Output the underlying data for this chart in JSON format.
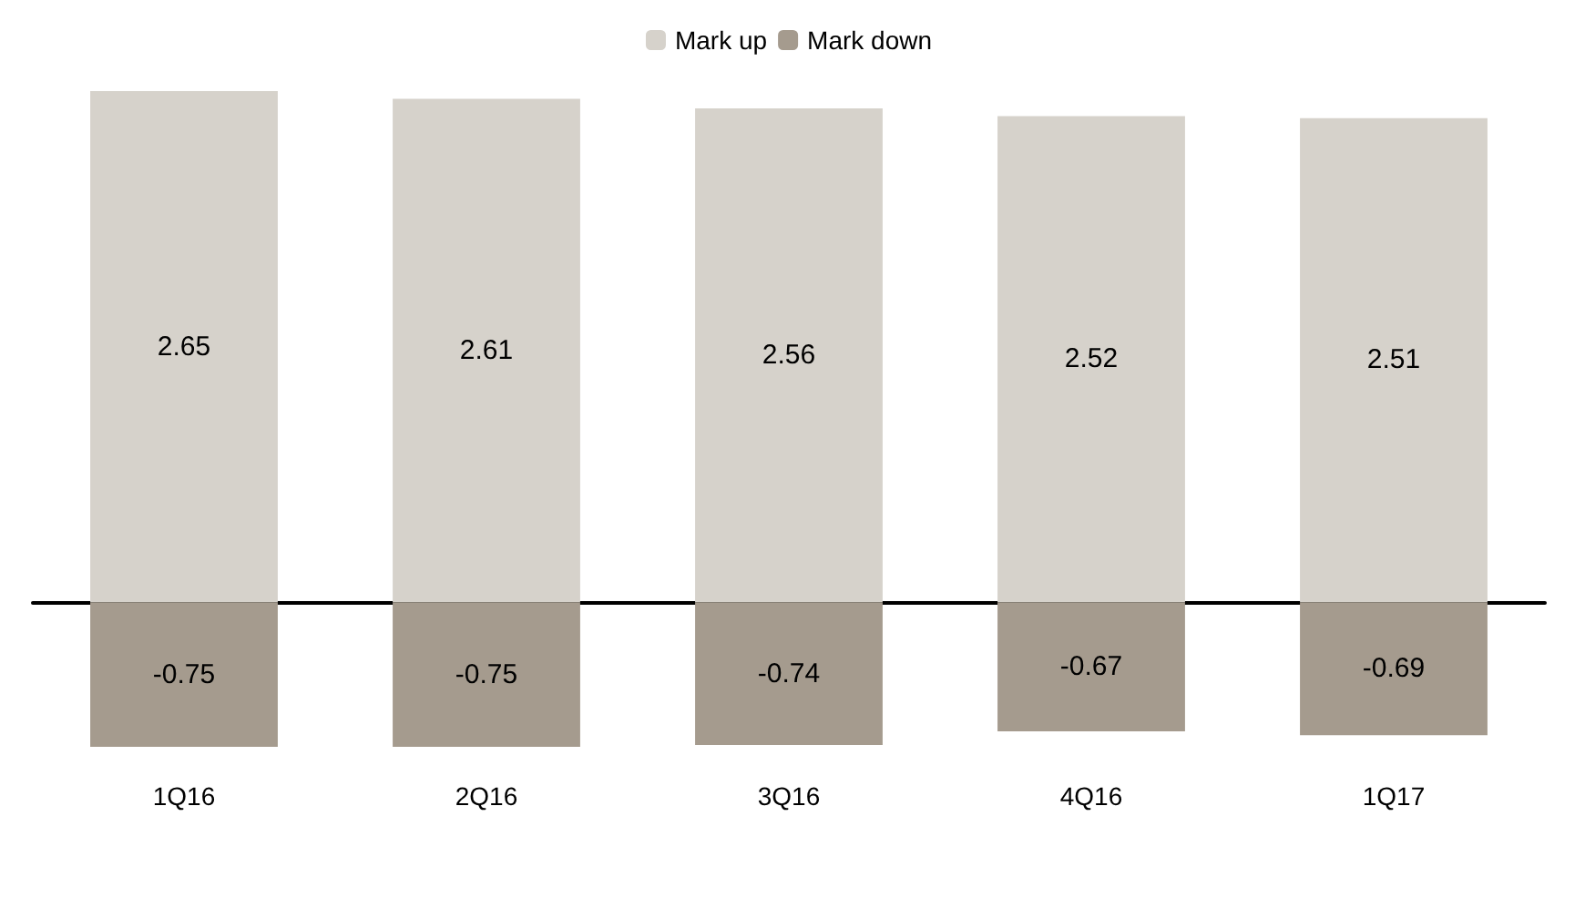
{
  "chart_data": {
    "type": "bar",
    "stacked": true,
    "categories": [
      "1Q16",
      "2Q16",
      "3Q16",
      "4Q16",
      "1Q17"
    ],
    "series": [
      {
        "name": "Mark up",
        "color": "#d6d2cb",
        "values": [
          2.65,
          2.61,
          2.56,
          2.52,
          2.51
        ]
      },
      {
        "name": "Mark down",
        "color": "#a59b8e",
        "values": [
          -0.75,
          -0.75,
          -0.74,
          -0.67,
          -0.69
        ]
      }
    ],
    "data_labels": true,
    "legend": "top"
  }
}
